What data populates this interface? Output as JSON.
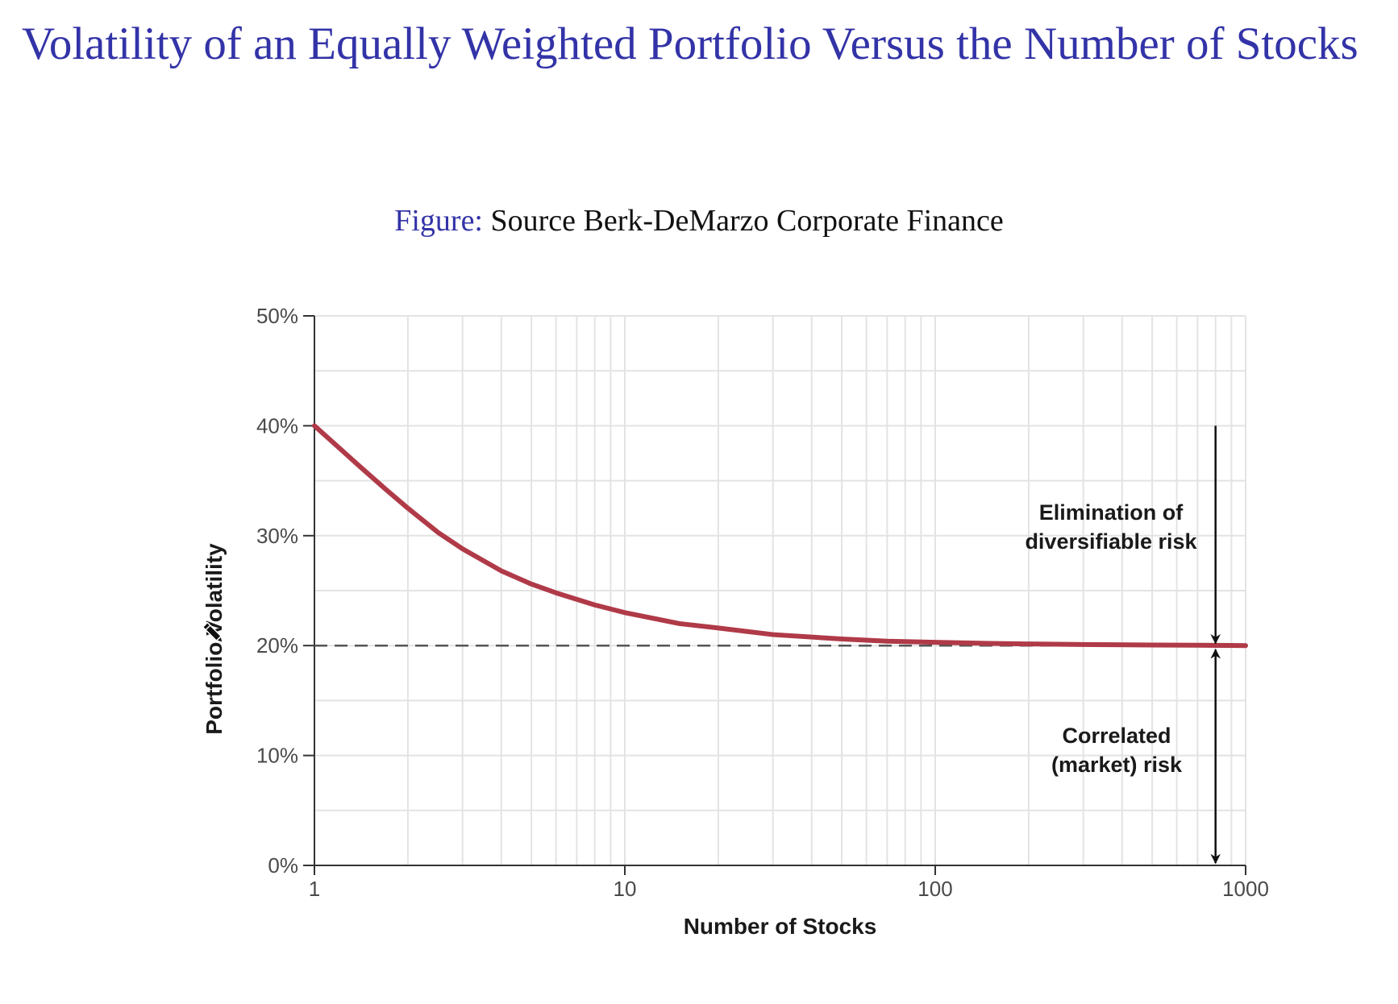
{
  "slide": {
    "title": "Volatility of an Equally Weighted Portfolio Versus the Number of Stocks",
    "caption_label": "Figure:",
    "caption_text": " Source Berk-DeMarzo Corporate Finance"
  },
  "icons": {
    "cursor": "pencil-icon"
  },
  "colors": {
    "title": "#3333a8",
    "curve": "#b03a48",
    "dashed": "#555555",
    "grid": "#e3e3e3",
    "axis": "#333333"
  },
  "chart_data": {
    "type": "line",
    "title": "",
    "xlabel": "Number of Stocks",
    "ylabel": "Portfolio Volatility",
    "x_scale": "log",
    "xlim": [
      1,
      1000
    ],
    "ylim": [
      0,
      50
    ],
    "grid": true,
    "x_ticks": [
      {
        "value": 1,
        "label": "1"
      },
      {
        "value": 10,
        "label": "10"
      },
      {
        "value": 100,
        "label": "100"
      },
      {
        "value": 1000,
        "label": "1000"
      }
    ],
    "y_ticks": [
      {
        "value": 0,
        "label": "0%"
      },
      {
        "value": 10,
        "label": "10%"
      },
      {
        "value": 20,
        "label": "20%"
      },
      {
        "value": 30,
        "label": "30%"
      },
      {
        "value": 40,
        "label": "40%"
      },
      {
        "value": 50,
        "label": "50%"
      }
    ],
    "series": [
      {
        "x": [
          1,
          1.2,
          1.4,
          1.7,
          2,
          2.5,
          3,
          4,
          5,
          6,
          8,
          10,
          15,
          20,
          30,
          50,
          70,
          100,
          150,
          200,
          300,
          500,
          700,
          1000
        ],
        "values": [
          40.0,
          38.0,
          36.3,
          34.2,
          32.5,
          30.3,
          28.8,
          26.8,
          25.6,
          24.8,
          23.7,
          23.0,
          22.0,
          21.6,
          21.0,
          20.6,
          20.4,
          20.3,
          20.2,
          20.15,
          20.1,
          20.05,
          20.03,
          20.0
        ]
      }
    ],
    "reference_lines": [
      {
        "y": 20,
        "style": "dashed"
      }
    ],
    "annotations": [
      {
        "lines": [
          "Elimination of",
          "diversifiable risk"
        ],
        "arrow": {
          "x": 800,
          "from_y": 40,
          "to_y": 20
        }
      },
      {
        "lines": [
          "Correlated",
          "(market) risk"
        ],
        "arrow": {
          "x": 800,
          "from_y": 20,
          "to_y": 0,
          "double": true
        }
      }
    ]
  }
}
